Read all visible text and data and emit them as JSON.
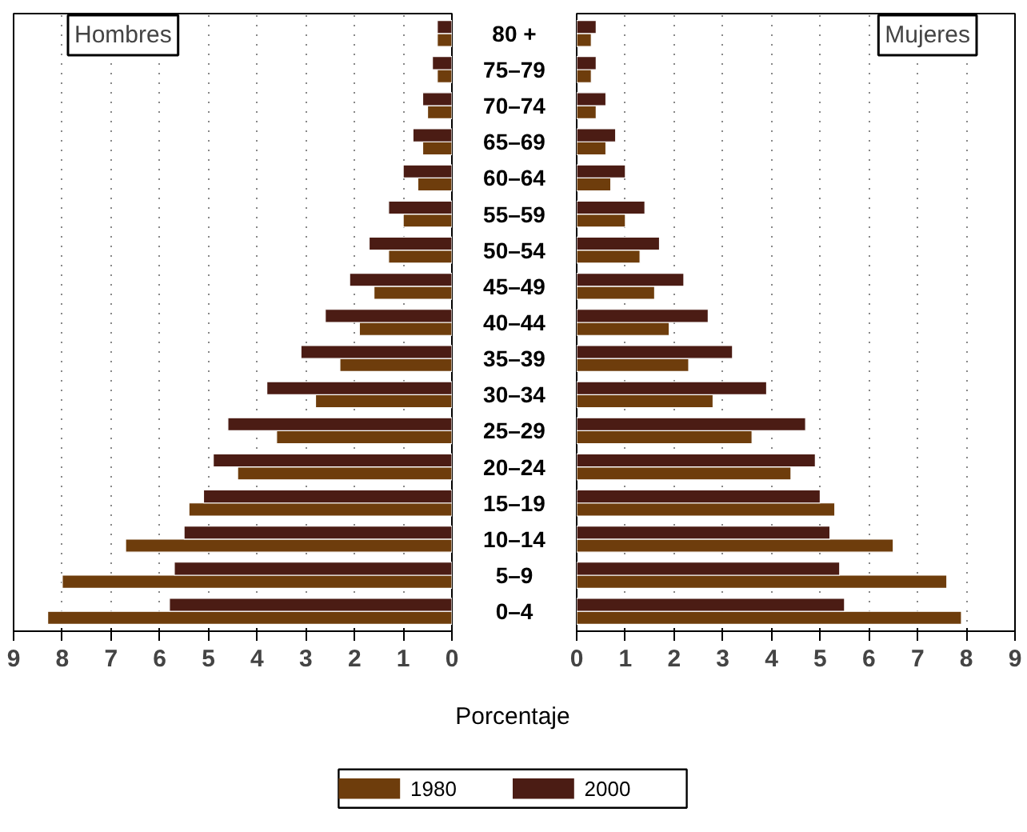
{
  "chart_data": [
    {
      "type": "bar",
      "orientation": "horizontal",
      "title": "Hombres",
      "xlabel": "Porcentaje",
      "categories": [
        "80 +",
        "75–79",
        "70–74",
        "65–69",
        "60–64",
        "55–59",
        "50–54",
        "45–49",
        "40–44",
        "35–39",
        "30–34",
        "25–29",
        "20–24",
        "15–19",
        "10–14",
        "5–9",
        "0–4"
      ],
      "series": [
        {
          "name": "1980",
          "color": "#6e3d0c",
          "values": [
            0.3,
            0.3,
            0.5,
            0.6,
            0.7,
            1.0,
            1.3,
            1.6,
            1.9,
            2.3,
            2.8,
            3.6,
            4.4,
            5.4,
            6.7,
            8.0,
            8.3
          ]
        },
        {
          "name": "2000",
          "color": "#4b1c14",
          "values": [
            0.3,
            0.4,
            0.6,
            0.8,
            1.0,
            1.3,
            1.7,
            2.1,
            2.6,
            3.1,
            3.8,
            4.6,
            4.9,
            5.1,
            5.5,
            5.7,
            5.8
          ]
        }
      ],
      "xlim": [
        9,
        0
      ],
      "xticks": [
        9,
        8,
        7,
        6,
        5,
        4,
        3,
        2,
        1,
        0
      ],
      "grid": "x",
      "legend": "bottom"
    },
    {
      "type": "bar",
      "orientation": "horizontal",
      "title": "Mujeres",
      "series": [
        {
          "color": "#6e3d0c",
          "values": [
            0.3,
            0.3,
            0.4,
            0.6,
            0.7,
            1.0,
            1.3,
            1.6,
            1.9,
            2.3,
            2.8,
            3.6,
            4.4,
            5.3,
            6.5,
            7.6,
            7.9
          ]
        },
        {
          "color": "#4b1c14",
          "values": [
            0.4,
            0.4,
            0.6,
            0.8,
            1.0,
            1.4,
            1.7,
            2.2,
            2.7,
            3.2,
            3.9,
            4.7,
            4.9,
            5.0,
            5.2,
            5.4,
            5.5
          ]
        }
      ],
      "xlim": [
        0,
        9
      ],
      "xticks": [
        0,
        1,
        2,
        3,
        4,
        5,
        6,
        7,
        8,
        9
      ],
      "grid": "x",
      "tick_labels": "x"
    }
  ]
}
